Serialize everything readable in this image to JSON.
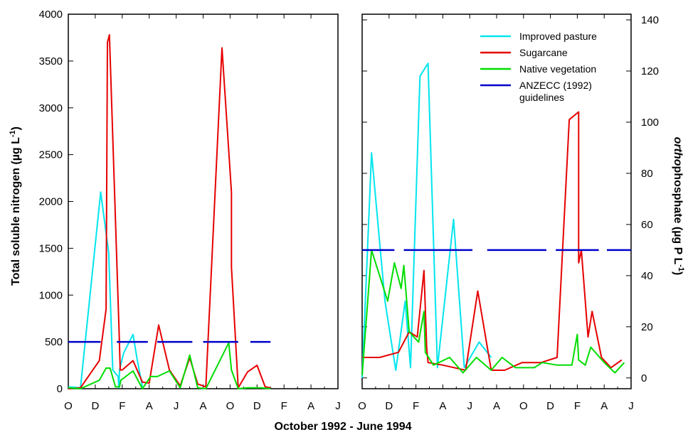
{
  "xlabel": "October 1992 - June 1994",
  "colors": {
    "improved_pasture": "#00e5ee",
    "sugarcane": "#e60000",
    "native_vegetation": "#00dd00",
    "anzecc": "#0000cc"
  },
  "legend": {
    "items": [
      {
        "key": "improved_pasture",
        "label": "Improved pasture"
      },
      {
        "key": "sugarcane",
        "label": "Sugarcane"
      },
      {
        "key": "native_vegetation",
        "label": "Native vegetation"
      },
      {
        "key": "anzecc",
        "label": "ANZECC (1992)",
        "label2": "guidelines"
      }
    ]
  },
  "chart_data": [
    {
      "type": "line",
      "ylabel_main": "Total soluble nitrogen (µg L",
      "ylabel_sup": "-1",
      "ylabel_end": ")",
      "ylim": [
        0,
        4000
      ],
      "yticks": [
        0,
        500,
        1000,
        1500,
        2000,
        2500,
        3000,
        3500,
        4000
      ],
      "xlim": [
        0,
        20
      ],
      "xtick_labels": [
        "O",
        "D",
        "F",
        "A",
        "J",
        "A",
        "O",
        "D",
        "F",
        "A",
        "J"
      ],
      "grid": false,
      "series": [
        {
          "key": "improved_pasture",
          "name": "Improved pasture",
          "points": [
            [
              0.0,
              20
            ],
            [
              0.9,
              10
            ],
            [
              2.4,
              2100
            ],
            [
              3.0,
              1450
            ],
            [
              3.3,
              200
            ],
            [
              3.7,
              130
            ],
            [
              3.75,
              10
            ],
            [
              3.8,
              200
            ],
            [
              4.1,
              380
            ],
            [
              4.8,
              580
            ],
            [
              5.1,
              320
            ],
            [
              5.5,
              20
            ]
          ]
        },
        {
          "key": "sugarcane",
          "name": "Sugarcane",
          "points": [
            [
              0.0,
              0
            ],
            [
              0.9,
              10
            ],
            [
              2.3,
              300
            ],
            [
              2.8,
              850
            ],
            [
              2.9,
              3700
            ],
            [
              3.05,
              3780
            ],
            [
              3.75,
              680
            ],
            [
              3.85,
              200
            ],
            [
              4.0,
              200
            ],
            [
              4.8,
              300
            ],
            [
              5.5,
              70
            ],
            [
              6.0,
              60
            ],
            [
              6.7,
              680
            ],
            [
              7.5,
              200
            ],
            [
              8.3,
              30
            ],
            [
              9.0,
              330
            ],
            [
              9.6,
              50
            ],
            [
              10.2,
              20
            ],
            [
              11.4,
              3640
            ],
            [
              12.1,
              2100
            ],
            [
              12.1,
              1300
            ],
            [
              12.6,
              10
            ],
            [
              13.3,
              180
            ],
            [
              14.0,
              250
            ],
            [
              14.6,
              20
            ],
            [
              15.0,
              10
            ]
          ]
        },
        {
          "key": "native_vegetation",
          "name": "Native vegetation",
          "points": [
            [
              0.0,
              10
            ],
            [
              0.9,
              0
            ],
            [
              2.3,
              90
            ],
            [
              2.8,
              220
            ],
            [
              3.1,
              220
            ],
            [
              3.5,
              20
            ],
            [
              3.8,
              20
            ],
            [
              3.9,
              90
            ],
            [
              4.8,
              190
            ],
            [
              5.5,
              0
            ],
            [
              6.1,
              130
            ],
            [
              6.6,
              130
            ],
            [
              7.5,
              190
            ],
            [
              8.3,
              10
            ],
            [
              9.0,
              360
            ],
            [
              9.6,
              10
            ],
            [
              10.2,
              0
            ],
            [
              11.9,
              490
            ],
            [
              12.1,
              200
            ],
            [
              12.6,
              0
            ],
            [
              13.3,
              10
            ],
            [
              14.3,
              10
            ],
            [
              15.0,
              0
            ]
          ]
        },
        {
          "key": "anzecc",
          "name": "ANZECC (1992) guidelines",
          "segments": [
            [
              [
                0.0,
                500
              ],
              [
                2.4,
                500
              ]
            ],
            [
              [
                3.6,
                500
              ],
              [
                5.9,
                500
              ]
            ],
            [
              [
                6.6,
                500
              ],
              [
                9.2,
                500
              ]
            ],
            [
              [
                10.0,
                500
              ],
              [
                12.6,
                500
              ]
            ],
            [
              [
                13.5,
                500
              ],
              [
                15.0,
                500
              ]
            ]
          ]
        }
      ]
    },
    {
      "type": "line",
      "ylabel_italic": "ortho",
      "ylabel_main": "phosphate (µg P L",
      "ylabel_sup": "-1",
      "ylabel_end": ")",
      "ylim": [
        -2,
        140
      ],
      "yticks": [
        0,
        20,
        40,
        60,
        80,
        100,
        120,
        140
      ],
      "xlim": [
        0,
        20
      ],
      "xtick_labels": [
        "O",
        "D",
        "F",
        "A",
        "J",
        "A",
        "O",
        "D",
        "F",
        "A",
        "J"
      ],
      "grid": false,
      "series": [
        {
          "key": "improved_pasture",
          "name": "Improved pasture",
          "points": [
            [
              0.0,
              0
            ],
            [
              0.7,
              88
            ],
            [
              1.7,
              30
            ],
            [
              2.5,
              3
            ],
            [
              3.2,
              30
            ],
            [
              3.6,
              4
            ],
            [
              4.3,
              118
            ],
            [
              4.9,
              123
            ],
            [
              5.6,
              4
            ],
            [
              6.8,
              62
            ],
            [
              7.6,
              4
            ],
            [
              8.7,
              14
            ],
            [
              9.6,
              8
            ]
          ]
        },
        {
          "key": "sugarcane",
          "name": "Sugarcane",
          "points": [
            [
              0.0,
              8
            ],
            [
              1.3,
              8
            ],
            [
              2.7,
              10
            ],
            [
              3.5,
              18
            ],
            [
              4.1,
              16
            ],
            [
              4.6,
              42
            ],
            [
              4.8,
              12
            ],
            [
              4.9,
              6
            ],
            [
              6.0,
              5
            ],
            [
              7.7,
              3
            ],
            [
              8.6,
              34
            ],
            [
              9.6,
              3
            ],
            [
              10.6,
              3
            ],
            [
              11.9,
              6
            ],
            [
              13.3,
              6
            ],
            [
              14.5,
              8
            ],
            [
              15.4,
              101
            ],
            [
              16.1,
              104
            ],
            [
              16.1,
              45
            ],
            [
              16.3,
              50
            ],
            [
              16.8,
              16
            ],
            [
              17.1,
              26
            ],
            [
              17.8,
              8
            ],
            [
              18.5,
              4
            ],
            [
              19.3,
              7
            ]
          ]
        },
        {
          "key": "native_vegetation",
          "name": "Native vegetation",
          "points": [
            [
              0.0,
              1
            ],
            [
              0.7,
              50
            ],
            [
              1.9,
              30
            ],
            [
              2.4,
              45
            ],
            [
              2.9,
              35
            ],
            [
              3.1,
              44
            ],
            [
              3.5,
              18
            ],
            [
              4.2,
              14
            ],
            [
              4.6,
              26
            ],
            [
              4.7,
              10
            ],
            [
              5.3,
              5
            ],
            [
              6.5,
              8
            ],
            [
              7.5,
              2
            ],
            [
              8.5,
              8
            ],
            [
              9.6,
              3
            ],
            [
              10.4,
              8
            ],
            [
              11.4,
              4
            ],
            [
              12.8,
              4
            ],
            [
              13.4,
              6
            ],
            [
              14.5,
              5
            ],
            [
              15.6,
              5
            ],
            [
              16.0,
              17
            ],
            [
              16.1,
              7
            ],
            [
              16.6,
              5
            ],
            [
              17.0,
              12
            ],
            [
              17.5,
              9
            ],
            [
              18.0,
              6
            ],
            [
              18.8,
              2
            ],
            [
              19.5,
              6
            ]
          ]
        },
        {
          "key": "anzecc",
          "name": "ANZECC (1992) guidelines",
          "segments": [
            [
              [
                0.0,
                50
              ],
              [
                2.4,
                50
              ]
            ],
            [
              [
                3.1,
                50
              ],
              [
                8.2,
                50
              ]
            ],
            [
              [
                9.3,
                50
              ],
              [
                13.7,
                50
              ]
            ],
            [
              [
                14.4,
                50
              ],
              [
                17.6,
                50
              ]
            ],
            [
              [
                18.2,
                50
              ],
              [
                20.0,
                50
              ]
            ]
          ]
        }
      ]
    }
  ]
}
